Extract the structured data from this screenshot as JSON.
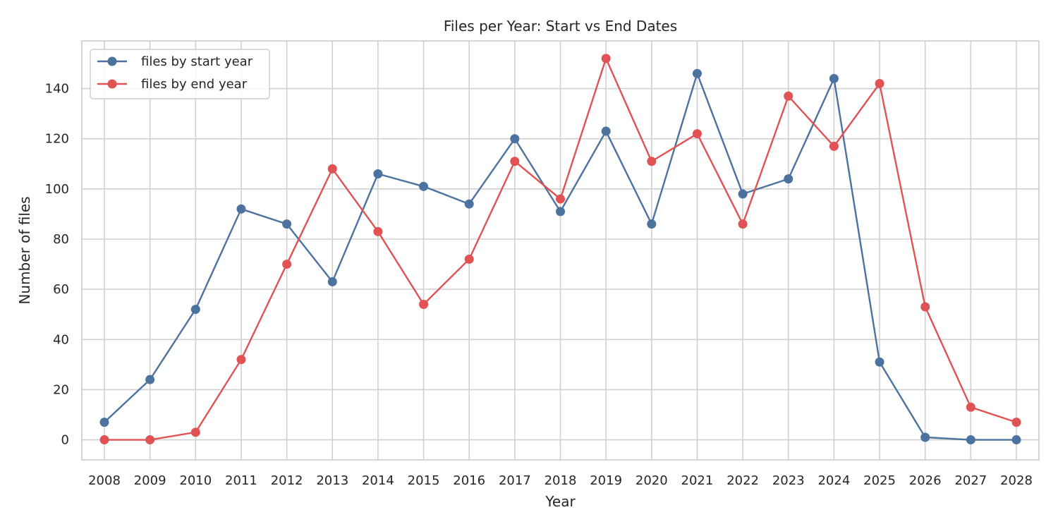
{
  "chart_data": {
    "type": "line",
    "title": "Files per Year: Start vs End Dates",
    "xlabel": "Year",
    "ylabel": "Number of files",
    "x": [
      "2008",
      "2009",
      "2010",
      "2011",
      "2012",
      "2013",
      "2014",
      "2015",
      "2016",
      "2017",
      "2018",
      "2019",
      "2020",
      "2021",
      "2022",
      "2023",
      "2024",
      "2025",
      "2026",
      "2027",
      "2028"
    ],
    "yticks": [
      "0",
      "20",
      "40",
      "60",
      "80",
      "100",
      "120",
      "140"
    ],
    "ylim": [
      -8,
      159
    ],
    "grid": true,
    "legend_position": "upper-left",
    "series": [
      {
        "name": "files by start year",
        "color": "#4c72a0",
        "values": [
          7,
          24,
          52,
          92,
          86,
          63,
          106,
          101,
          94,
          120,
          91,
          123,
          86,
          146,
          98,
          104,
          144,
          31,
          1,
          0,
          0
        ]
      },
      {
        "name": "files by end year",
        "color": "#e05254",
        "values": [
          0,
          0,
          3,
          32,
          70,
          108,
          83,
          54,
          72,
          111,
          96,
          152,
          111,
          122,
          86,
          137,
          117,
          142,
          53,
          13,
          7
        ]
      }
    ]
  }
}
